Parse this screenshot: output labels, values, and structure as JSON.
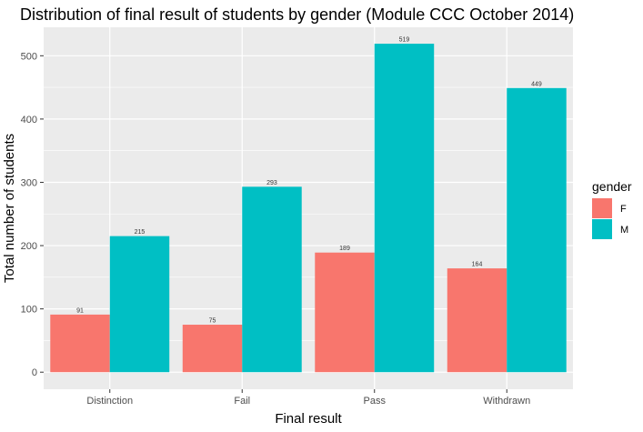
{
  "chart_data": {
    "type": "bar",
    "title": "Distribution of final result of students by gender (Module CCC October 2014)",
    "xlabel": "Final result",
    "ylabel": "Total number of students",
    "categories": [
      "Distinction",
      "Fail",
      "Pass",
      "Withdrawn"
    ],
    "series": [
      {
        "name": "F",
        "values": [
          91,
          75,
          189,
          164
        ],
        "color": "#F8766D"
      },
      {
        "name": "M",
        "values": [
          215,
          293,
          519,
          449
        ],
        "color": "#00BFC4"
      }
    ],
    "ylim": [
      -27,
      545
    ],
    "yticks": [
      0,
      100,
      200,
      300,
      400,
      500
    ],
    "grid": true,
    "panel_background": "#EBEBEB",
    "grid_color": "#FFFFFF",
    "legend": {
      "title": "gender",
      "position": "right"
    }
  }
}
